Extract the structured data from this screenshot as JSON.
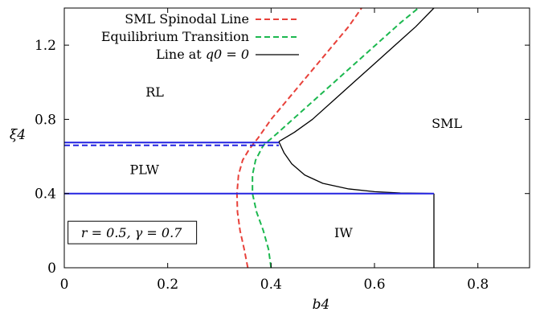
{
  "chart_data": {
    "type": "line",
    "xlabel": "b4",
    "ylabel": "ξ4",
    "xlim": [
      0,
      0.9
    ],
    "ylim": [
      0,
      1.4
    ],
    "xticks": [
      0,
      0.2,
      0.4,
      0.6,
      0.8
    ],
    "yticks": [
      0,
      0.4,
      0.8,
      1.2
    ],
    "xtick_labels": [
      "0",
      "0.2",
      "0.4",
      "0.6",
      "0.8"
    ],
    "ytick_labels": [
      "0",
      "0.4",
      "0.8",
      "1.2"
    ],
    "grid": false,
    "legend_position": "top-center",
    "series": [
      {
        "name": "SML Spinodal Line",
        "style": "dashed",
        "color": "#e8413a",
        "points": [
          [
            0.355,
            0.0
          ],
          [
            0.348,
            0.1
          ],
          [
            0.34,
            0.2
          ],
          [
            0.335,
            0.3
          ],
          [
            0.334,
            0.4
          ],
          [
            0.337,
            0.5
          ],
          [
            0.345,
            0.58
          ],
          [
            0.358,
            0.64
          ],
          [
            0.375,
            0.7
          ],
          [
            0.4,
            0.8
          ],
          [
            0.43,
            0.9
          ],
          [
            0.46,
            1.0
          ],
          [
            0.49,
            1.1
          ],
          [
            0.52,
            1.2
          ],
          [
            0.55,
            1.3
          ],
          [
            0.575,
            1.4
          ]
        ]
      },
      {
        "name": "Equilibrium Transition",
        "style": "dashed",
        "color": "#1cb84f",
        "points": [
          [
            0.4,
            0.0
          ],
          [
            0.395,
            0.1
          ],
          [
            0.385,
            0.2
          ],
          [
            0.372,
            0.3
          ],
          [
            0.364,
            0.4
          ],
          [
            0.364,
            0.5
          ],
          [
            0.37,
            0.58
          ],
          [
            0.385,
            0.66
          ],
          [
            0.41,
            0.72
          ],
          [
            0.45,
            0.82
          ],
          [
            0.49,
            0.92
          ],
          [
            0.53,
            1.02
          ],
          [
            0.57,
            1.12
          ],
          [
            0.61,
            1.22
          ],
          [
            0.65,
            1.32
          ],
          [
            0.685,
            1.4
          ]
        ]
      },
      {
        "name": "Line at q_0 = 0",
        "legend_label": "Line at",
        "legend_math": "q0 = 0",
        "style": "solid",
        "color": "#000000",
        "points": [
          [
            0.715,
            1.4
          ],
          [
            0.68,
            1.3
          ],
          [
            0.64,
            1.2
          ],
          [
            0.6,
            1.1
          ],
          [
            0.56,
            1.0
          ],
          [
            0.52,
            0.9
          ],
          [
            0.48,
            0.8
          ],
          [
            0.445,
            0.73
          ],
          [
            0.415,
            0.68
          ]
        ]
      },
      {
        "name": "",
        "style": "solid",
        "color": "#000000",
        "points": [
          [
            0.415,
            0.68
          ],
          [
            0.425,
            0.62
          ],
          [
            0.44,
            0.56
          ],
          [
            0.465,
            0.5
          ],
          [
            0.5,
            0.455
          ],
          [
            0.55,
            0.425
          ],
          [
            0.6,
            0.41
          ],
          [
            0.65,
            0.403
          ],
          [
            0.715,
            0.4
          ]
        ]
      },
      {
        "name": "",
        "style": "solid",
        "color": "#000000",
        "points": [
          [
            0.715,
            0.4
          ],
          [
            0.715,
            0.0
          ]
        ]
      },
      {
        "name": "",
        "style": "solid",
        "color": "#2424e0",
        "points": [
          [
            0.0,
            0.675
          ],
          [
            0.415,
            0.675
          ]
        ]
      },
      {
        "name": "",
        "style": "dashed",
        "color": "#2424e0",
        "points": [
          [
            0.0,
            0.66
          ],
          [
            0.415,
            0.66
          ]
        ]
      },
      {
        "name": "",
        "style": "solid",
        "color": "#2424e0",
        "points": [
          [
            0.0,
            0.4
          ],
          [
            0.715,
            0.4
          ]
        ]
      }
    ],
    "annotations": [
      {
        "text": "RL",
        "x": 0.175,
        "y": 0.95
      },
      {
        "text": "SML",
        "x": 0.74,
        "y": 0.78
      },
      {
        "text": "PLW",
        "x": 0.155,
        "y": 0.53
      },
      {
        "text": "IW",
        "x": 0.54,
        "y": 0.19
      },
      {
        "text": "r = 0.5, γ = 0.7",
        "x": 0.13,
        "y": 0.19,
        "boxed": true
      }
    ]
  }
}
